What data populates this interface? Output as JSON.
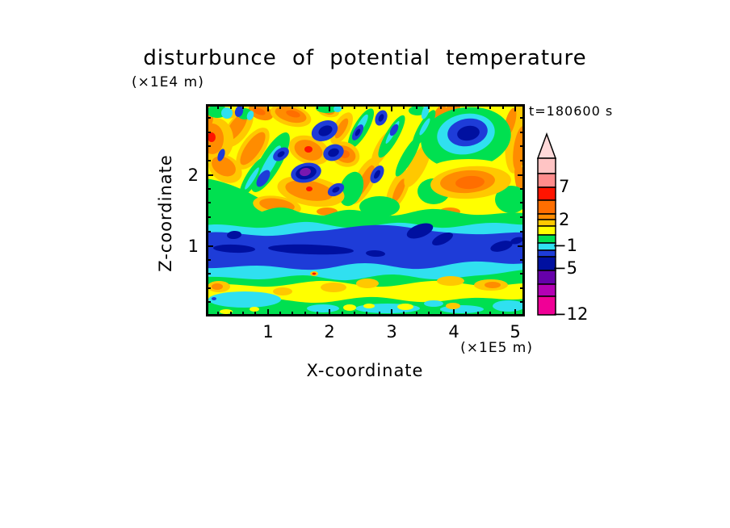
{
  "palette": {
    "yellow": "#FFFF00",
    "gold": "#FFC800",
    "orange": "#FF8C00",
    "dark_orange": "#FF6E00",
    "red": "#FF1400",
    "green": "#00E050",
    "cyan": "#30E0F0",
    "blue": "#1E3CD8",
    "navy": "#0010A0",
    "purple": "#7818B0",
    "violet": "#6600AA",
    "magenta_purple": "#B400B4",
    "magenta": "#F00096",
    "salmon": "#FF8C8C",
    "pale_pink": "#FFC4C4",
    "arrow_pink": "#FFD9D9"
  },
  "chart_data": {
    "type": "filled_contour",
    "title": "disturbunce of potential temperature",
    "annotation": "t=180600 s",
    "x_axis": {
      "label": "X-coordinate",
      "units_label": "(×1E5 m)",
      "tick_labels": [
        "1",
        "2",
        "3",
        "4",
        "5"
      ],
      "range_est": [
        0,
        5.15
      ],
      "minor_ticks_per_major": 5
    },
    "y_axis": {
      "label": "Z-coordinate",
      "units_label": "(×1E4 m)",
      "tick_labels": [
        "1",
        "2"
      ],
      "range_est": [
        0,
        3.05
      ],
      "minor_ticks_per_major": 5
    },
    "colorbar": {
      "labeled_levels": [
        7,
        2,
        -1,
        -5,
        -12
      ],
      "label_strings": [
        "7",
        "2",
        "−1",
        "−5",
        "−12"
      ],
      "arrow_color": "arrow_pink",
      "segments": [
        {
          "color": "pale_pink",
          "h": 19
        },
        {
          "color": "salmon",
          "h": 17
        },
        {
          "color": "red",
          "h": 16
        },
        {
          "color": "dark_orange",
          "h": 17
        },
        {
          "color": "orange",
          "h": 7
        },
        {
          "color": "gold",
          "h": 8
        },
        {
          "color": "yellow",
          "h": 11
        },
        {
          "color": "green",
          "h": 10
        },
        {
          "color": "cyan",
          "h": 9
        },
        {
          "color": "blue",
          "h": 8
        },
        {
          "color": "navy",
          "h": 17
        },
        {
          "color": "violet",
          "h": 17
        },
        {
          "color": "magenta_purple",
          "h": 15
        },
        {
          "color": "magenta",
          "h": 23
        }
      ]
    },
    "field_description": [
      "Upper half (z ≈ 1.6–3.0 ×1E4 m): turbulent breaking-wave region, yellow/orange background with tilted diagonal streaks; warm cores reach red, cold blobs reach navy with one purple core; prominent eye-like green/cyan/blue/navy vortex near x≈4.2, z≈2.5",
      "Middle (z ≈ 0.85–1.35): continuous dark blue stable band with navy patches, fringed by cyan strips",
      "Below band: green layer, then yellow band with gold/orange blobs (z ≈ 0.25–0.5), bottom green layer with cyan lenses near z ≈ 0.1"
    ]
  }
}
